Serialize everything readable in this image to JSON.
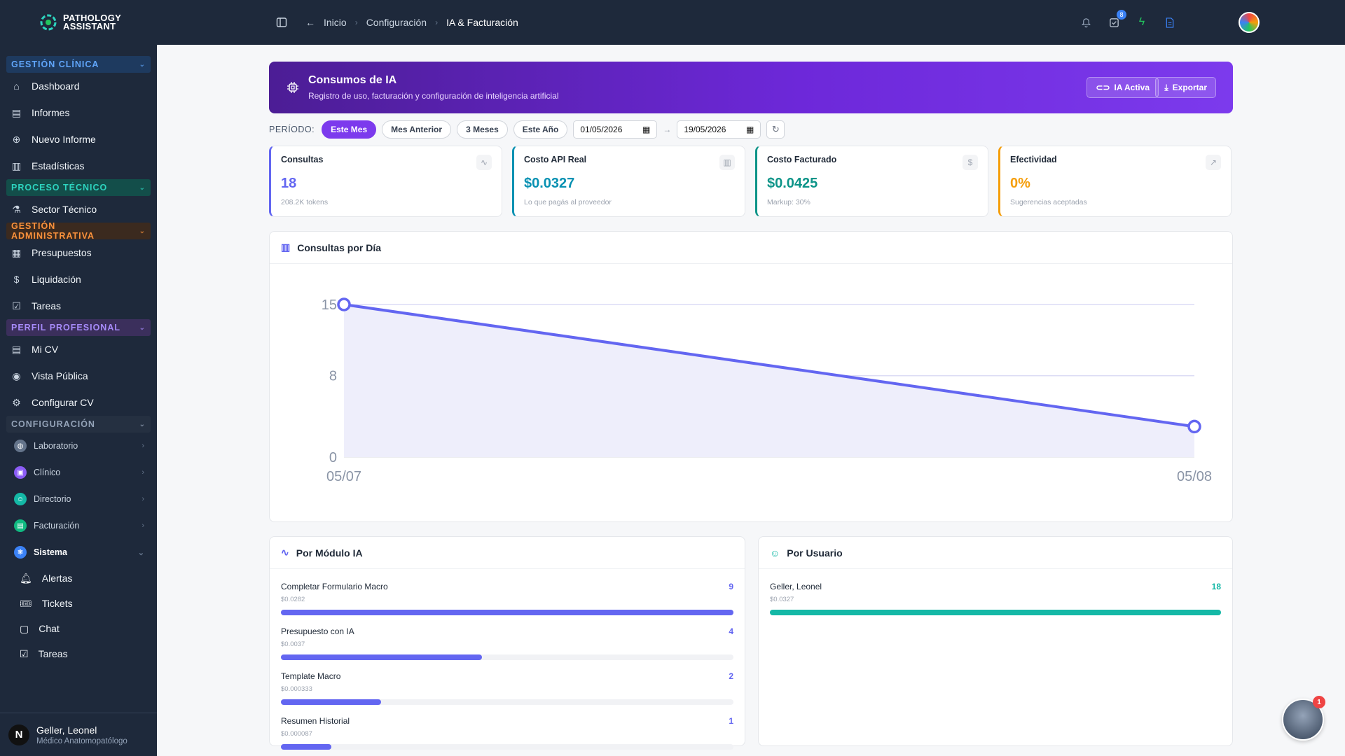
{
  "app": {
    "name_line1": "PATHOLOGY",
    "name_line2": "ASSISTANT"
  },
  "sidebar": {
    "sections": [
      {
        "label": "GESTIÓN CLÍNICA",
        "items": [
          "Dashboard",
          "Informes",
          "Nuevo Informe",
          "Estadísticas"
        ]
      },
      {
        "label": "PROCESO TÉCNICO",
        "items": [
          "Sector Técnico"
        ]
      },
      {
        "label": "GESTIÓN ADMINISTRATIVA",
        "items": [
          "Presupuestos",
          "Liquidación",
          "Tareas"
        ]
      },
      {
        "label": "PERFIL PROFESIONAL",
        "items": [
          "Mi CV",
          "Vista Pública",
          "Configurar CV"
        ]
      },
      {
        "label": "CONFIGURACIÓN",
        "groups": [
          "Laboratorio",
          "Clínico",
          "Directorio",
          "Facturación",
          "Sistema"
        ],
        "sistema_items": [
          "Alertas",
          "Tickets",
          "Chat",
          "Tareas"
        ]
      }
    ],
    "user": {
      "initial": "N",
      "name": "Geller, Leonel",
      "role": "Médico Anatomopatólogo"
    }
  },
  "topbar": {
    "breadcrumbs": [
      "Inicio",
      "Configuración",
      "IA & Facturación"
    ],
    "tasks_badge": "8"
  },
  "hero": {
    "title": "Consumos de IA",
    "subtitle": "Registro de uso, facturación y configuración de inteligencia artificial",
    "ia_button": "IA Activa",
    "export_button": "Exportar"
  },
  "period": {
    "label": "PERÍODO:",
    "options": [
      "Este Mes",
      "Mes Anterior",
      "3 Meses",
      "Este Año"
    ],
    "selected": "Este Mes",
    "date_from": "01/05/2026",
    "date_to": "19/05/2026"
  },
  "kpis": [
    {
      "title": "Consultas",
      "value": "18",
      "sub": "208.2K tokens",
      "color": "#6366f1"
    },
    {
      "title": "Costo API Real",
      "value": "$0.0327",
      "sub": "Lo que pagás al proveedor",
      "color": "#0891b2"
    },
    {
      "title": "Costo Facturado",
      "value": "$0.0425",
      "sub": "Markup: 30%",
      "color": "#0d9488"
    },
    {
      "title": "Efectividad",
      "value": "0%",
      "sub": "Sugerencias aceptadas",
      "color": "#f59e0b"
    }
  ],
  "chart": {
    "title": "Consultas por Día"
  },
  "chart_data": {
    "type": "area",
    "x": [
      "05/07",
      "05/08"
    ],
    "series": [
      {
        "values": [
          15,
          3
        ],
        "color": "#6366f1"
      }
    ],
    "yticks": [
      0,
      8,
      15
    ],
    "ylim": [
      0,
      15
    ],
    "grid": true
  },
  "modules": {
    "title": "Por Módulo IA",
    "rows": [
      {
        "name": "Completar Formulario Macro",
        "cost": "$0.0282",
        "count": "9",
        "fraction": 1.0
      },
      {
        "name": "Presupuesto con IA",
        "cost": "$0.0037",
        "count": "4",
        "fraction": 0.444
      },
      {
        "name": "Template Macro",
        "cost": "$0.000333",
        "count": "2",
        "fraction": 0.222
      },
      {
        "name": "Resumen Historial",
        "cost": "$0.000087",
        "count": "1",
        "fraction": 0.111
      }
    ]
  },
  "users": {
    "title": "Por Usuario",
    "rows": [
      {
        "name": "Geller, Leonel",
        "cost": "$0.0327",
        "count": "18",
        "fraction": 1.0
      }
    ]
  },
  "chat_widget": {
    "badge": "1"
  }
}
